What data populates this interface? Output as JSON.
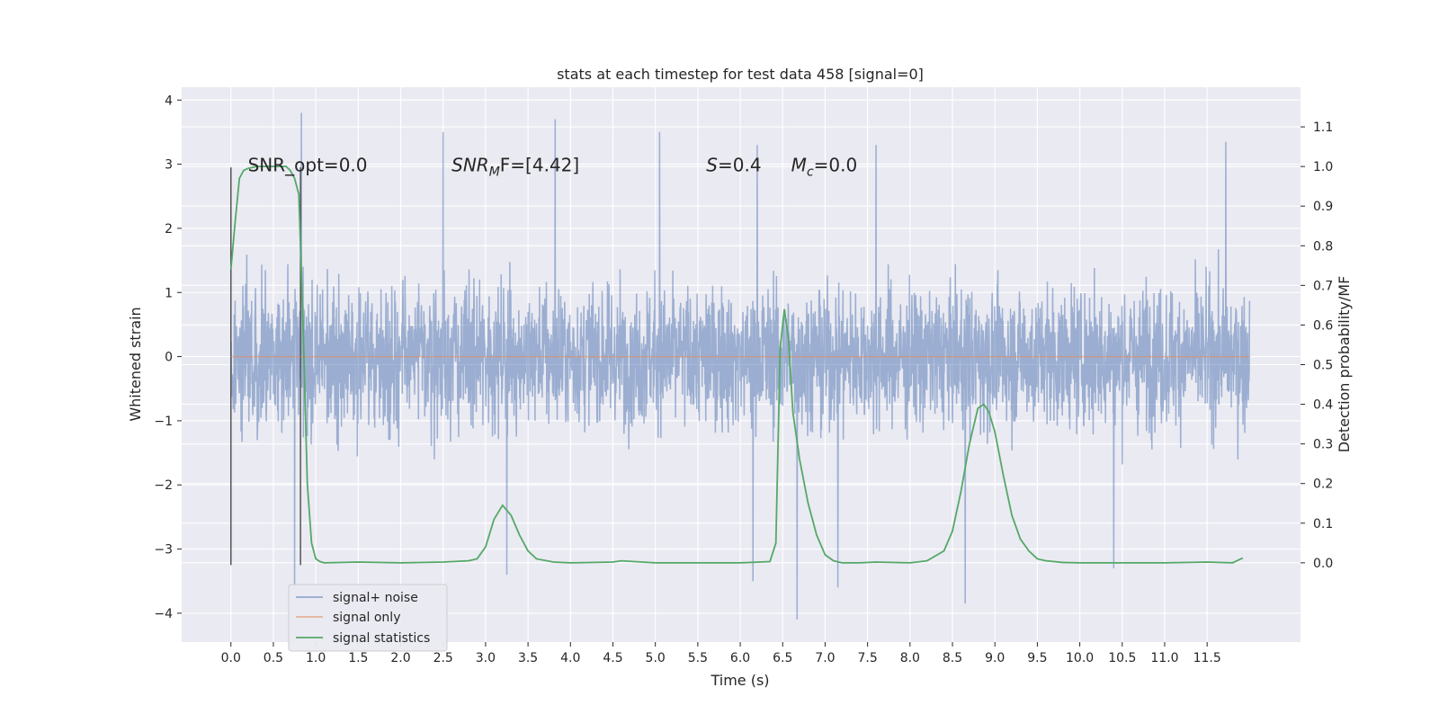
{
  "chart_data": {
    "type": "line",
    "title": "stats at each timestep for test data 458 [signal=0]",
    "xlabel": "Time (s)",
    "ylabel_left": "Whitened strain",
    "ylabel_right": "Detection probability/MF",
    "xlim": [
      -0.58,
      12.6
    ],
    "ylim_left": [
      -4.45,
      4.2
    ],
    "ylim_right": [
      -0.2,
      1.2
    ],
    "x_ticks": [
      "0.0",
      "0.5",
      "1.0",
      "1.5",
      "2.0",
      "2.5",
      "3.0",
      "3.5",
      "4.0",
      "4.5",
      "5.0",
      "5.5",
      "6.0",
      "6.5",
      "7.0",
      "7.5",
      "8.0",
      "8.5",
      "9.0",
      "9.5",
      "10.0",
      "10.5",
      "11.0",
      "11.5"
    ],
    "y_ticks_left": [
      "−4",
      "−3",
      "−2",
      "−1",
      "0",
      "1",
      "2",
      "3",
      "4"
    ],
    "y_ticks_right": [
      "0.0",
      "0.1",
      "0.2",
      "0.3",
      "0.4",
      "0.5",
      "0.6",
      "0.7",
      "0.8",
      "0.9",
      "1.0",
      "1.1"
    ],
    "grid": true,
    "legend_position": "lower-left",
    "annotations": [
      {
        "text": "SNR_opt=0.0",
        "x": 0.2,
        "y": 3.0
      },
      {
        "text_main": "SNR",
        "text_sub": "M",
        "text_tail": "F=[4.42]",
        "x": 2.6,
        "y": 3.0
      },
      {
        "text_main": "S",
        "text_tail": "=0.4",
        "x": 5.6,
        "y": 3.0
      },
      {
        "text_main": "M",
        "text_sub": "c",
        "text_tail": "=0.0",
        "x": 6.6,
        "y": 3.0
      }
    ],
    "vlines": [
      {
        "x": 0.0,
        "ymin": -3.25,
        "ymax": 2.95
      },
      {
        "x": 0.82,
        "ymin": -3.25,
        "ymax": 2.95
      }
    ],
    "series": [
      {
        "name": "signal+ noise",
        "color": "#4c72b0",
        "x_range": [
          0.0,
          12.0
        ],
        "typical_range": [
          -1.6,
          1.6
        ],
        "peak_spikes": [
          {
            "x": 0.83,
            "y": 3.8
          },
          {
            "x": 2.5,
            "y": 3.5
          },
          {
            "x": 3.82,
            "y": 3.7
          },
          {
            "x": 5.05,
            "y": 3.5
          },
          {
            "x": 6.2,
            "y": 3.3
          },
          {
            "x": 7.6,
            "y": 3.3
          },
          {
            "x": 11.72,
            "y": 3.35
          },
          {
            "x": 0.75,
            "y": -3.6
          },
          {
            "x": 3.25,
            "y": -3.4
          },
          {
            "x": 6.15,
            "y": -3.5
          },
          {
            "x": 6.67,
            "y": -4.1
          },
          {
            "x": 8.65,
            "y": -3.85
          },
          {
            "x": 7.15,
            "y": -3.6
          },
          {
            "x": 10.4,
            "y": -3.3
          }
        ]
      },
      {
        "name": "signal only",
        "color": "#dd8452",
        "x": [
          0.0,
          12.0
        ],
        "y": [
          0.0,
          0.0
        ]
      },
      {
        "name": "signal statistics",
        "color": "#55a868",
        "axis": "right",
        "x": [
          0.0,
          0.05,
          0.1,
          0.15,
          0.2,
          0.3,
          0.4,
          0.5,
          0.6,
          0.65,
          0.7,
          0.75,
          0.8,
          0.85,
          0.9,
          0.95,
          1.0,
          1.05,
          1.1,
          1.5,
          2.0,
          2.5,
          2.8,
          2.9,
          3.0,
          3.1,
          3.2,
          3.3,
          3.4,
          3.5,
          3.6,
          3.8,
          4.0,
          4.5,
          4.6,
          5.0,
          6.0,
          6.35,
          6.42,
          6.47,
          6.52,
          6.57,
          6.62,
          6.7,
          6.8,
          6.9,
          7.0,
          7.1,
          7.2,
          7.4,
          7.6,
          8.0,
          8.2,
          8.4,
          8.5,
          8.6,
          8.7,
          8.8,
          8.87,
          8.93,
          9.0,
          9.1,
          9.2,
          9.3,
          9.4,
          9.5,
          9.6,
          9.8,
          10.0,
          11.0,
          11.5,
          11.8,
          11.92
        ],
        "y": [
          0.74,
          0.86,
          0.97,
          0.99,
          0.995,
          1.0,
          1.0,
          1.0,
          1.0,
          1.0,
          0.99,
          0.97,
          0.93,
          0.6,
          0.2,
          0.05,
          0.01,
          0.003,
          0.0,
          0.002,
          0.0,
          0.002,
          0.005,
          0.01,
          0.04,
          0.11,
          0.145,
          0.12,
          0.07,
          0.03,
          0.01,
          0.002,
          0.0,
          0.002,
          0.005,
          0.0,
          0.0,
          0.003,
          0.05,
          0.54,
          0.64,
          0.56,
          0.38,
          0.26,
          0.15,
          0.07,
          0.02,
          0.005,
          0.0,
          0.0,
          0.002,
          0.0,
          0.005,
          0.03,
          0.08,
          0.18,
          0.3,
          0.39,
          0.4,
          0.38,
          0.33,
          0.22,
          0.12,
          0.06,
          0.03,
          0.01,
          0.005,
          0.001,
          0.0,
          0.0,
          0.002,
          0.0,
          0.012
        ]
      }
    ]
  }
}
